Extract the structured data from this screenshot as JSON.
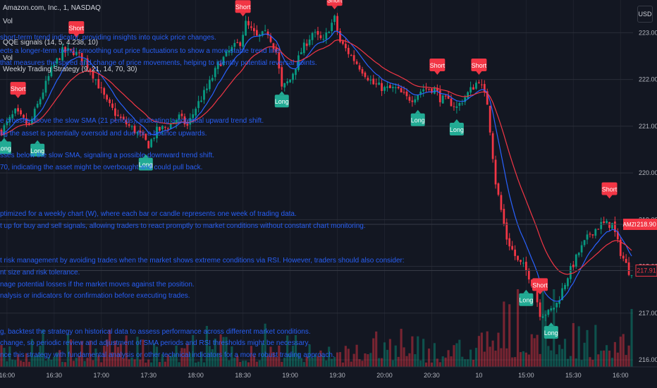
{
  "header": {
    "symbol_line": "Amazon.com, Inc., 1, NASDAQ",
    "indicator_1": "Vol",
    "indicator_2": "QQE signals (14, 5, 4.238, 10)",
    "indicator_3": "Vol",
    "indicator_4": "Weekly Trading Strategy (9, 21, 14, 70, 30)",
    "currency_button": "USD"
  },
  "overlay_text": [
    "short-term trend indicator, providing insights into quick price changes.",
    "ects a longer-term trend, smoothing out price fluctuations to show a more stable trend line.",
    "that measures the speed and change of price movements, helping to identify potential reversal points.",
    "e crosses above the slow SMA (21 periods), indicating a potential upward trend shift.",
    "ng the asset is potentially oversold and due for a bounce upwards.",
    "sses below the slow SMA, signaling a possible downward trend shift.",
    "70, indicating the asset might be overbought and could pull back.",
    "ptimized for a weekly chart (W), where each bar or candle represents one week of trading data.",
    "t up for buy and sell signals, allowing traders to react promptly to market conditions without constant chart monitoring.",
    "t risk management by avoiding trades when the market shows extreme conditions via RSI. However, traders should also consider:",
    "nt size and risk tolerance.",
    "nage potential losses if the market moves against the position.",
    "nalysis or indicators for confirmation before executing trades.",
    "g, backtest the strategy on historical data to assess performance across different market conditions.",
    "change, so periodic review and adjustment of SMA periods and RSI thresholds might be necessary.",
    "nce this strategy with fundamental analysis or other technical indicators for a more robust trading approach."
  ],
  "chart_data": {
    "type": "candlestick",
    "ylim": [
      215.85,
      223.55
    ],
    "y_ticks": [
      216,
      217,
      218,
      219,
      220,
      221,
      222,
      223
    ],
    "y_tick_labels": [
      "216.00",
      "217.00",
      "218.00",
      "219.00",
      "220.00",
      "221.00",
      "222.00",
      "223.00"
    ],
    "x_ticks": [
      {
        "bar": 2,
        "label": "16:00"
      },
      {
        "bar": 19,
        "label": "16:30"
      },
      {
        "bar": 36,
        "label": "17:00"
      },
      {
        "bar": 53,
        "label": "17:30"
      },
      {
        "bar": 70,
        "label": "18:00"
      },
      {
        "bar": 87,
        "label": "18:30"
      },
      {
        "bar": 104,
        "label": "19:00"
      },
      {
        "bar": 121,
        "label": "19:30"
      },
      {
        "bar": 138,
        "label": "20:00"
      },
      {
        "bar": 155,
        "label": "20:30"
      },
      {
        "bar": 172,
        "label": "10"
      },
      {
        "bar": 189,
        "label": "15:00"
      },
      {
        "bar": 206,
        "label": "15:30"
      },
      {
        "bar": 223,
        "label": "16:00"
      }
    ],
    "price_anchors": [
      [
        0,
        220.9
      ],
      [
        5,
        221.3
      ],
      [
        10,
        221.0
      ],
      [
        14,
        221.6
      ],
      [
        18,
        222.2
      ],
      [
        22,
        222.6
      ],
      [
        26,
        222.6
      ],
      [
        30,
        222.4
      ],
      [
        34,
        222.0
      ],
      [
        38,
        221.5
      ],
      [
        42,
        221.2
      ],
      [
        46,
        221.0
      ],
      [
        50,
        220.8
      ],
      [
        53,
        220.6
      ],
      [
        56,
        220.9
      ],
      [
        60,
        221.0
      ],
      [
        64,
        221.2
      ],
      [
        67,
        221.0
      ],
      [
        70,
        221.4
      ],
      [
        74,
        221.8
      ],
      [
        78,
        222.3
      ],
      [
        82,
        222.6
      ],
      [
        86,
        222.8
      ],
      [
        88,
        223.2
      ],
      [
        92,
        222.9
      ],
      [
        96,
        223.0
      ],
      [
        99,
        222.6
      ],
      [
        101,
        221.8
      ],
      [
        104,
        222.0
      ],
      [
        108,
        222.6
      ],
      [
        112,
        223.0
      ],
      [
        116,
        222.8
      ],
      [
        118,
        223.1
      ],
      [
        120,
        223.3
      ],
      [
        122,
        222.8
      ],
      [
        126,
        222.5
      ],
      [
        130,
        222.2
      ],
      [
        134,
        221.9
      ],
      [
        138,
        221.8
      ],
      [
        142,
        221.8
      ],
      [
        146,
        221.6
      ],
      [
        148,
        221.6
      ],
      [
        152,
        221.8
      ],
      [
        156,
        221.8
      ],
      [
        158,
        221.6
      ],
      [
        162,
        221.5
      ],
      [
        164,
        221.4
      ],
      [
        168,
        221.7
      ],
      [
        172,
        222.0
      ],
      [
        175,
        221.5
      ],
      [
        178,
        219.8
      ],
      [
        182,
        218.6
      ],
      [
        186,
        218.1
      ],
      [
        188,
        218.0
      ],
      [
        190,
        217.8
      ],
      [
        192,
        217.5
      ],
      [
        194,
        217.0
      ],
      [
        197,
        217.0
      ],
      [
        200,
        217.2
      ],
      [
        204,
        217.8
      ],
      [
        208,
        218.3
      ],
      [
        212,
        218.7
      ],
      [
        216,
        218.9
      ],
      [
        220,
        218.9
      ],
      [
        223,
        218.3
      ],
      [
        226,
        217.9
      ]
    ],
    "series": [
      {
        "name": "",
        "color": "#2962ff",
        "type": "line",
        "description_key": "fast"
      },
      {
        "name": "",
        "color": "#f23645",
        "type": "line",
        "description_key": "slow"
      }
    ],
    "signals": [
      {
        "bar": 1,
        "type": "Long",
        "price": 220.75
      },
      {
        "bar": 6,
        "type": "Short",
        "price": 221.6
      },
      {
        "bar": 13,
        "type": "Long",
        "price": 220.7
      },
      {
        "bar": 27,
        "type": "Short",
        "price": 222.9
      },
      {
        "bar": 52,
        "type": "Long",
        "price": 220.4
      },
      {
        "bar": 87,
        "type": "Short",
        "price": 223.35
      },
      {
        "bar": 101,
        "type": "Long",
        "price": 221.75
      },
      {
        "bar": 120,
        "type": "Short",
        "price": 223.5
      },
      {
        "bar": 150,
        "type": "Long",
        "price": 221.35
      },
      {
        "bar": 157,
        "type": "Short",
        "price": 222.1
      },
      {
        "bar": 164,
        "type": "Long",
        "price": 221.15
      },
      {
        "bar": 172,
        "type": "Short",
        "price": 222.1
      },
      {
        "bar": 189,
        "type": "Long",
        "price": 217.5
      },
      {
        "bar": 194,
        "type": "Short",
        "price": 217.4
      },
      {
        "bar": 198,
        "type": "Long",
        "price": 216.8
      },
      {
        "bar": 219,
        "type": "Short",
        "price": 219.45
      }
    ],
    "price_labels": [
      {
        "label": "AMZN",
        "value": 218.9,
        "color": "#f23645"
      },
      {
        "label": "218.90",
        "value": 218.9,
        "color": "#f23645"
      },
      {
        "label": "217.91",
        "value": 217.91,
        "color": "#f23645"
      }
    ],
    "colors": {
      "up": "#089981",
      "down": "#f23645",
      "grid": "#2a2e39",
      "text": "#b2b5be",
      "long": "#22ab94",
      "short": "#f23645",
      "line_level": "#2962ff"
    }
  }
}
